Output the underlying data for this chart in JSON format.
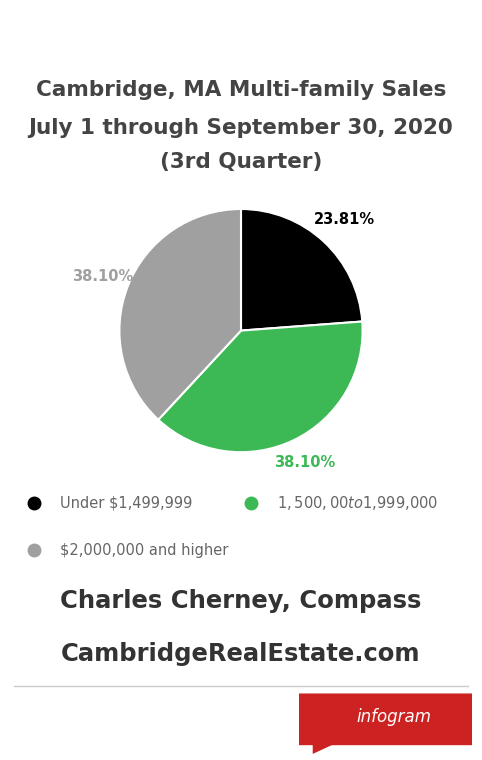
{
  "title_line1": "Cambridge, MA Multi-family Sales",
  "title_line2": "July 1 through September 30, 2020",
  "title_line3": "(3rd Quarter)",
  "slices": [
    23.81,
    38.1,
    38.1
  ],
  "slice_labels": [
    "23.81%",
    "38.10%",
    "38.10%"
  ],
  "slice_colors": [
    "#000000",
    "#3cb954",
    "#a0a0a0"
  ],
  "slice_label_colors": [
    "#000000",
    "#3cb954",
    "#a0a0a0"
  ],
  "legend_labels": [
    "Under $1,499,999",
    "$1,500,00 to $1,999,000",
    "$2,000,000 and higher"
  ],
  "legend_colors": [
    "#000000",
    "#3cb954",
    "#a0a0a0"
  ],
  "startangle": 90,
  "credit_line1": "Charles Cherney, Compass",
  "credit_line2": "CambridgeRealEstate.com",
  "infogram_text": "infogram",
  "infogram_bg": "#cc2222",
  "background_color": "#ffffff",
  "title_color": "#444444",
  "credit_color": "#333333",
  "legend_text_color": "#666666"
}
